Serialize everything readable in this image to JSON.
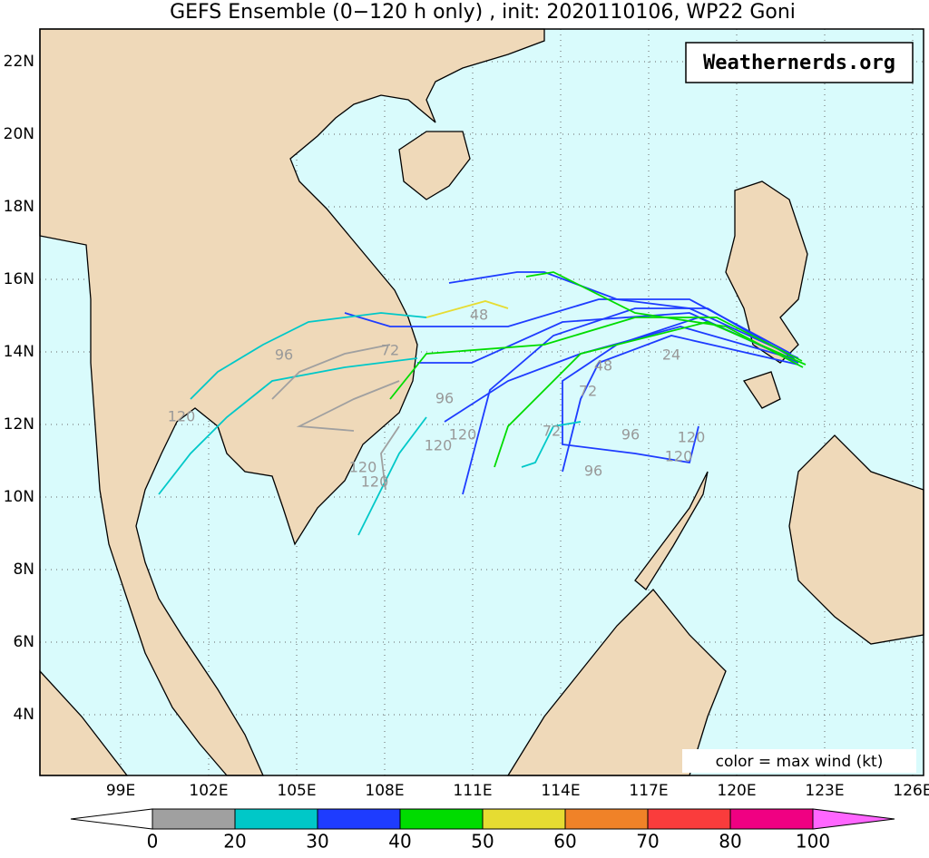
{
  "title": "GEFS Ensemble (0−120 h only) , init: 2020110106, WP22 Goni",
  "watermark": "Weathernerds.org",
  "legend_note": "color = max wind (kt)",
  "lat_labels": [
    "22N",
    "20N",
    "18N",
    "16N",
    "14N",
    "12N",
    "10N",
    "8N",
    "6N",
    "4N"
  ],
  "lon_labels": [
    "99E",
    "102E",
    "105E",
    "108E",
    "111E",
    "114E",
    "117E",
    "120E",
    "123E",
    "126E"
  ],
  "hour_labels": [
    "48",
    "72",
    "96",
    "120",
    "24",
    "48",
    "72",
    "96",
    "120",
    "120",
    "96",
    "72",
    "120",
    "120",
    "120",
    "120",
    "96"
  ],
  "colorbar": {
    "ticks": [
      0,
      20,
      30,
      40,
      50,
      60,
      70,
      80,
      100
    ],
    "colors": [
      "#a0a0a0",
      "#00c8c8",
      "#1e3cff",
      "#00dc00",
      "#e6dc32",
      "#f08228",
      "#fa3c3c",
      "#f00082"
    ]
  }
}
